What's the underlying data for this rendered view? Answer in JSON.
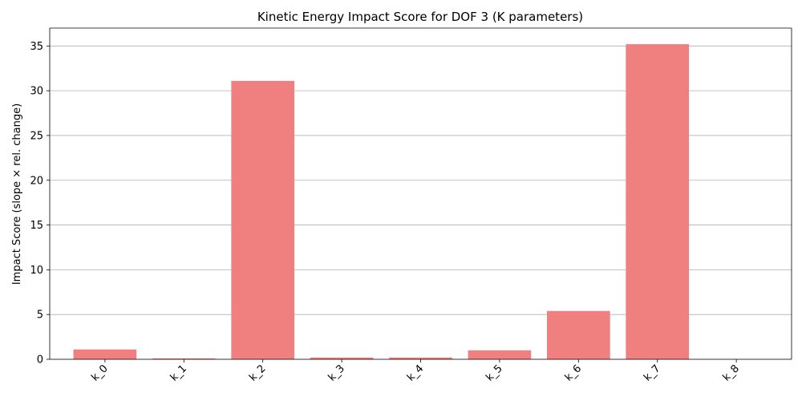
{
  "chart_data": {
    "type": "bar",
    "title": "Kinetic Energy Impact Score for DOF 3 (K parameters)",
    "xlabel": "",
    "ylabel": "Impact Score (slope × rel. change)",
    "categories": [
      "k_0",
      "k_1",
      "k_2",
      "k_3",
      "k_4",
      "k_5",
      "k_6",
      "k_7",
      "k_8"
    ],
    "values": [
      1.1,
      0.1,
      31.1,
      0.2,
      0.2,
      1.0,
      5.4,
      35.2,
      0.0
    ],
    "ylim": [
      0,
      37
    ],
    "yticks": [
      0,
      5,
      10,
      15,
      20,
      25,
      30,
      35
    ],
    "grid": "y",
    "bar_color": "#f08080"
  }
}
